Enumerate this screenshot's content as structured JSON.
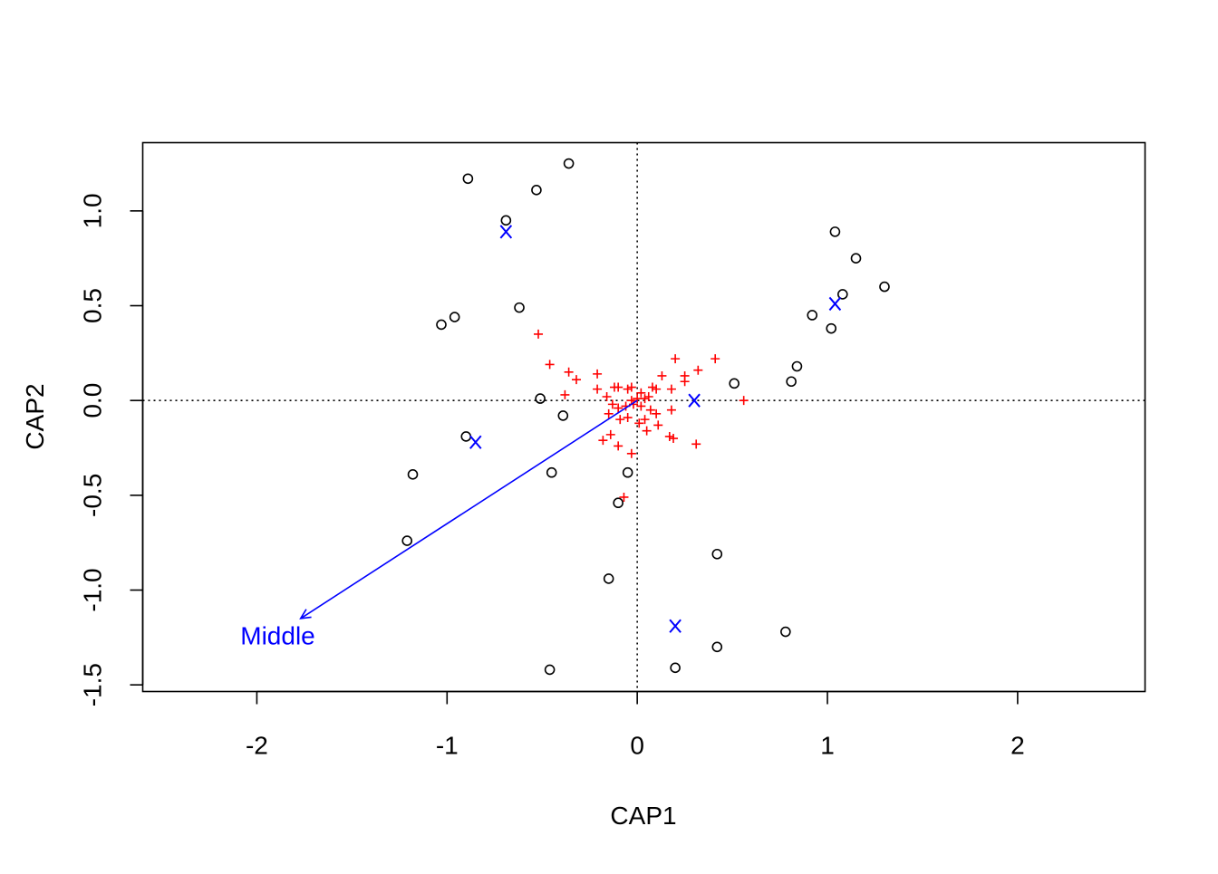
{
  "chart_data": {
    "type": "scatter",
    "title": "",
    "xlabel": "CAP1",
    "ylabel": "CAP2",
    "xlim": [
      -2.6,
      2.67
    ],
    "ylim": [
      -1.535,
      1.36
    ],
    "x_ticks": [
      -2,
      -1,
      0,
      1,
      2
    ],
    "x_tick_labels": [
      "-2",
      "-1",
      "0",
      "1",
      "2"
    ],
    "y_ticks": [
      -1.5,
      -1.0,
      -0.5,
      0.0,
      0.5,
      1.0
    ],
    "y_tick_labels": [
      "-1.5",
      "-1.0",
      "-0.5",
      "0.0",
      "0.5",
      "1.0"
    ],
    "reference_lines": {
      "x": 0,
      "y": 0,
      "style": "dotted"
    },
    "grid": false,
    "legend": "none",
    "colors": {
      "sites": "#000000",
      "species": "#ff0000",
      "centroids": "#0000ff",
      "biplot": "#0000ff"
    },
    "series": [
      {
        "marker": "circle",
        "points": [
          [
            -0.89,
            1.17
          ],
          [
            -0.36,
            1.25
          ],
          [
            -0.53,
            1.11
          ],
          [
            -0.69,
            0.95
          ],
          [
            -0.62,
            0.49
          ],
          [
            -1.03,
            0.4
          ],
          [
            -0.96,
            0.44
          ],
          [
            1.04,
            0.89
          ],
          [
            1.15,
            0.75
          ],
          [
            1.3,
            0.6
          ],
          [
            1.08,
            0.56
          ],
          [
            0.92,
            0.45
          ],
          [
            1.02,
            0.38
          ],
          [
            0.84,
            0.18
          ],
          [
            0.81,
            0.1
          ],
          [
            0.51,
            0.09
          ],
          [
            -0.51,
            0.01
          ],
          [
            -0.39,
            -0.08
          ],
          [
            -0.9,
            -0.19
          ],
          [
            -1.18,
            -0.39
          ],
          [
            -0.45,
            -0.38
          ],
          [
            -0.05,
            -0.38
          ],
          [
            -0.1,
            -0.54
          ],
          [
            -1.21,
            -0.74
          ],
          [
            -0.15,
            -0.94
          ],
          [
            0.42,
            -0.81
          ],
          [
            0.78,
            -1.22
          ],
          [
            0.42,
            -1.3
          ],
          [
            0.2,
            -1.41
          ],
          [
            -0.46,
            -1.42
          ]
        ]
      },
      {
        "marker": "plus",
        "points": [
          [
            -0.52,
            0.35
          ],
          [
            -0.46,
            0.19
          ],
          [
            -0.36,
            0.15
          ],
          [
            -0.32,
            0.11
          ],
          [
            -0.38,
            0.03
          ],
          [
            -0.21,
            0.14
          ],
          [
            -0.21,
            0.06
          ],
          [
            -0.16,
            0.02
          ],
          [
            -0.12,
            0.07
          ],
          [
            -0.1,
            0.07
          ],
          [
            -0.05,
            0.06
          ],
          [
            -0.03,
            0.07
          ],
          [
            0.02,
            0.04
          ],
          [
            0.04,
            0.01
          ],
          [
            0.08,
            0.07
          ],
          [
            0.1,
            0.06
          ],
          [
            0.13,
            0.13
          ],
          [
            0.18,
            0.06
          ],
          [
            0.2,
            0.22
          ],
          [
            0.25,
            0.13
          ],
          [
            0.25,
            0.1
          ],
          [
            0.32,
            0.16
          ],
          [
            0.41,
            0.22
          ],
          [
            0.56,
            0.0
          ],
          [
            -0.13,
            -0.02
          ],
          [
            -0.1,
            -0.04
          ],
          [
            -0.06,
            -0.03
          ],
          [
            -0.02,
            -0.02
          ],
          [
            0.02,
            -0.03
          ],
          [
            0.07,
            -0.05
          ],
          [
            0.1,
            -0.07
          ],
          [
            0.18,
            -0.05
          ],
          [
            -0.15,
            -0.07
          ],
          [
            -0.09,
            -0.1
          ],
          [
            -0.05,
            -0.09
          ],
          [
            0.04,
            -0.1
          ],
          [
            0.01,
            -0.12
          ],
          [
            0.05,
            -0.16
          ],
          [
            0.11,
            -0.13
          ],
          [
            -0.14,
            -0.18
          ],
          [
            -0.18,
            -0.21
          ],
          [
            -0.1,
            -0.24
          ],
          [
            -0.03,
            -0.28
          ],
          [
            0.17,
            -0.19
          ],
          [
            0.19,
            -0.2
          ],
          [
            0.31,
            -0.23
          ],
          [
            -0.07,
            -0.51
          ],
          [
            0.0,
            0.01
          ],
          [
            0.06,
            0.02
          ],
          [
            -0.03,
            0.0
          ]
        ]
      },
      {
        "marker": "x",
        "points": [
          [
            -0.69,
            0.89
          ],
          [
            1.04,
            0.51
          ],
          [
            0.3,
            0.0
          ],
          [
            -0.85,
            -0.22
          ],
          [
            0.2,
            -1.19
          ]
        ]
      }
    ],
    "biplot_arrows": [
      {
        "label": "Middle",
        "from": [
          0,
          0
        ],
        "to": [
          -1.77,
          -1.15
        ],
        "label_at": [
          -1.89,
          -1.24
        ]
      }
    ]
  }
}
